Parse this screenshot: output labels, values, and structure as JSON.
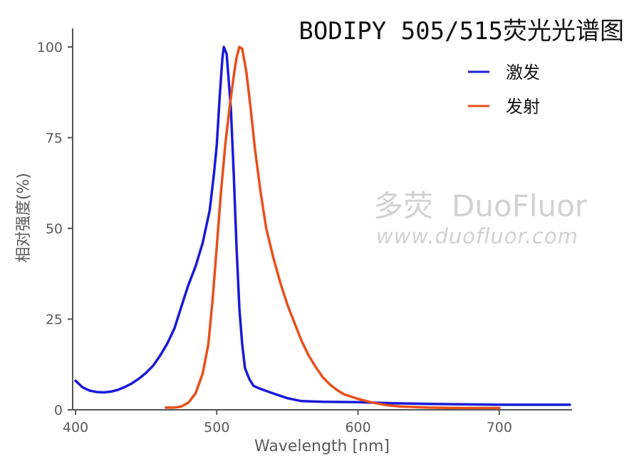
{
  "chart_data": {
    "type": "line",
    "title": "BODIPY 505/515荧光光谱图",
    "xlabel": "Wavelength [nm]",
    "ylabel": "相对强度(%)",
    "xlim": [
      400,
      750
    ],
    "ylim": [
      0,
      100
    ],
    "x_ticks": [
      "400",
      "500",
      "600",
      "700"
    ],
    "y_ticks": [
      "0",
      "25",
      "50",
      "75",
      "100"
    ],
    "grid": false,
    "legend_position": "top-right",
    "series": [
      {
        "name": "激发",
        "color": "#1a1ad8",
        "points": [
          [
            400,
            8.0
          ],
          [
            405,
            6.2
          ],
          [
            410,
            5.3
          ],
          [
            415,
            4.9
          ],
          [
            420,
            4.8
          ],
          [
            425,
            5.0
          ],
          [
            430,
            5.5
          ],
          [
            435,
            6.3
          ],
          [
            440,
            7.3
          ],
          [
            445,
            8.6
          ],
          [
            450,
            10.2
          ],
          [
            455,
            12.2
          ],
          [
            460,
            15.0
          ],
          [
            465,
            18.3
          ],
          [
            470,
            22.4
          ],
          [
            475,
            28.5
          ],
          [
            480,
            34.5
          ],
          [
            485,
            39.5
          ],
          [
            490,
            46.0
          ],
          [
            495,
            55.0
          ],
          [
            498,
            65.0
          ],
          [
            500,
            73.0
          ],
          [
            502,
            86.0
          ],
          [
            504,
            97.0
          ],
          [
            505,
            100.0
          ],
          [
            507,
            98.0
          ],
          [
            510,
            83.0
          ],
          [
            512,
            65.0
          ],
          [
            514,
            45.0
          ],
          [
            516,
            28.0
          ],
          [
            518,
            18.0
          ],
          [
            520,
            11.5
          ],
          [
            523,
            8.5
          ],
          [
            526,
            6.6
          ],
          [
            530,
            5.9
          ],
          [
            535,
            5.2
          ],
          [
            540,
            4.5
          ],
          [
            550,
            3.2
          ],
          [
            560,
            2.4
          ],
          [
            575,
            2.2
          ],
          [
            600,
            2.1
          ],
          [
            625,
            1.8
          ],
          [
            650,
            1.6
          ],
          [
            700,
            1.4
          ],
          [
            750,
            1.4
          ]
        ]
      },
      {
        "name": "发射",
        "color": "#e8501c",
        "points": [
          [
            464,
            0.6
          ],
          [
            470,
            0.6
          ],
          [
            475,
            0.9
          ],
          [
            480,
            2.0
          ],
          [
            485,
            4.5
          ],
          [
            490,
            10.0
          ],
          [
            494,
            18.0
          ],
          [
            497,
            30.0
          ],
          [
            500,
            45.0
          ],
          [
            503,
            60.0
          ],
          [
            506,
            73.0
          ],
          [
            509,
            83.0
          ],
          [
            512,
            92.0
          ],
          [
            514,
            97.0
          ],
          [
            516,
            100.0
          ],
          [
            518,
            99.5
          ],
          [
            521,
            93.0
          ],
          [
            524,
            83.0
          ],
          [
            527,
            72.0
          ],
          [
            531,
            60.0
          ],
          [
            535,
            50.0
          ],
          [
            540,
            42.0
          ],
          [
            545,
            35.0
          ],
          [
            550,
            29.0
          ],
          [
            555,
            24.0
          ],
          [
            560,
            19.0
          ],
          [
            565,
            15.0
          ],
          [
            570,
            11.8
          ],
          [
            575,
            9.0
          ],
          [
            580,
            7.0
          ],
          [
            585,
            5.5
          ],
          [
            590,
            4.3
          ],
          [
            600,
            3.0
          ],
          [
            610,
            2.0
          ],
          [
            620,
            1.3
          ],
          [
            630,
            0.9
          ],
          [
            650,
            0.6
          ],
          [
            675,
            0.5
          ],
          [
            700,
            0.5
          ]
        ]
      }
    ]
  },
  "watermark": {
    "chinese": "多荧",
    "brand": "DuoFluor",
    "url": "www.duofluor.com"
  }
}
